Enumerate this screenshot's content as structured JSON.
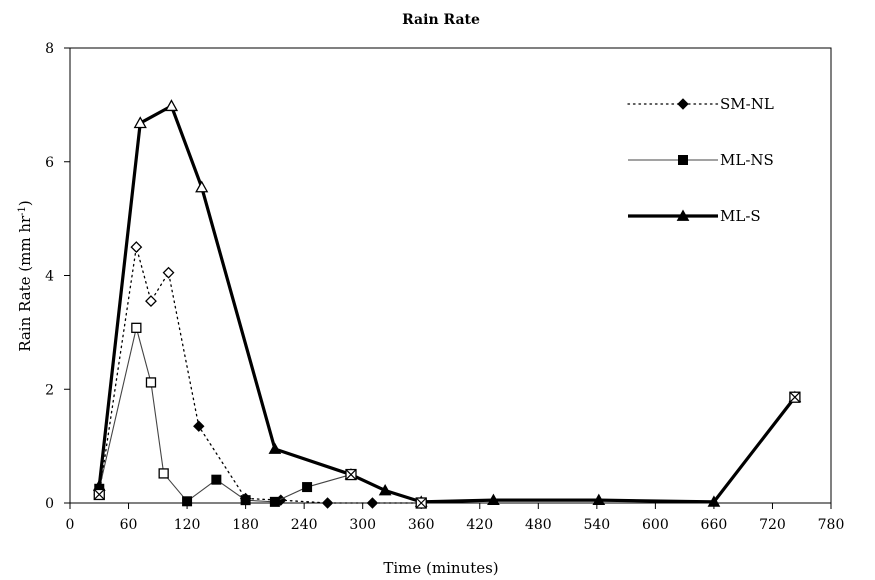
{
  "chart_data": {
    "type": "line",
    "title": "Rain Rate",
    "xlabel": "Time (minutes)",
    "ylabel_base": "Rain Rate (mm hr",
    "ylabel_sup": "-1",
    "ylabel_close": ")",
    "xlim": [
      0,
      780
    ],
    "ylim": [
      0,
      8
    ],
    "xticks": [
      "0",
      "60",
      "120",
      "180",
      "240",
      "300",
      "360",
      "420",
      "480",
      "540",
      "600",
      "660",
      "720",
      "780"
    ],
    "yticks": [
      "0",
      "2",
      "4",
      "6",
      "8"
    ],
    "grid": false,
    "legend_position": "top-right",
    "series": [
      {
        "name": "SM-NL",
        "style": "dotted",
        "marker": "diamond",
        "x": [
          30,
          68,
          83,
          101,
          132,
          180,
          216,
          264,
          310,
          360
        ],
        "y": [
          0.15,
          4.5,
          3.55,
          4.05,
          1.35,
          0.08,
          0.05,
          0.0,
          0.0,
          0.0
        ],
        "hollow": [
          false,
          true,
          true,
          true,
          false,
          false,
          false,
          false,
          false,
          false
        ]
      },
      {
        "name": "ML-NS",
        "style": "thin",
        "marker": "square",
        "x": [
          30,
          68,
          83,
          96,
          120,
          150,
          180,
          210,
          243,
          288
        ],
        "y": [
          0.25,
          3.08,
          2.12,
          0.52,
          0.03,
          0.41,
          0.05,
          0.02,
          0.28,
          0.5
        ],
        "hollow": [
          false,
          true,
          true,
          true,
          false,
          false,
          false,
          false,
          false,
          false
        ]
      },
      {
        "name": "ML-S",
        "style": "thick",
        "marker": "triangle",
        "x": [
          30,
          72,
          104,
          135,
          210,
          288,
          323,
          360,
          434,
          542,
          660,
          743
        ],
        "y": [
          0.3,
          6.68,
          6.98,
          5.55,
          0.95,
          0.5,
          0.22,
          0.02,
          0.05,
          0.05,
          0.02,
          1.86
        ],
        "hollow": [
          false,
          true,
          true,
          true,
          false,
          false,
          false,
          false,
          false,
          false,
          false,
          false
        ]
      }
    ],
    "crossed_points": [
      {
        "x": 30,
        "y": 0.15
      },
      {
        "x": 288,
        "y": 0.5
      },
      {
        "x": 360,
        "y": 0.0
      },
      {
        "x": 743,
        "y": 1.86
      }
    ]
  }
}
